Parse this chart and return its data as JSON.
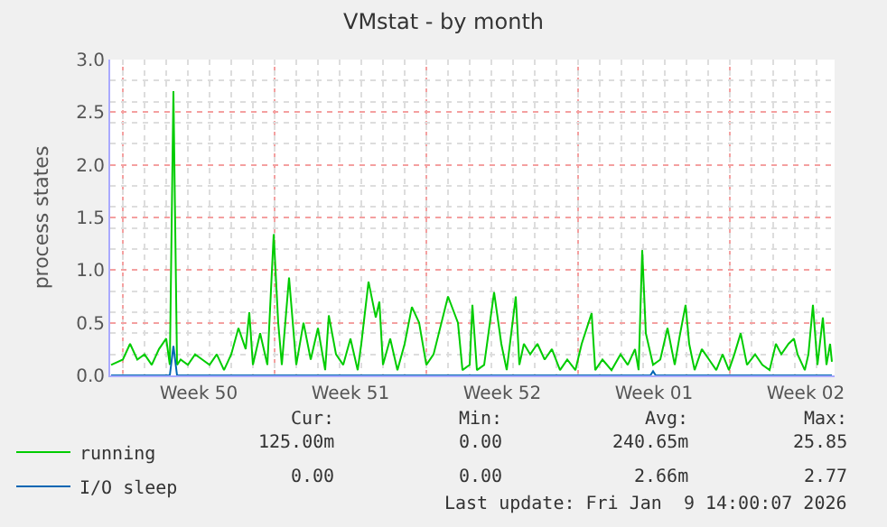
{
  "chart_data": {
    "type": "line",
    "title": "VMstat - by month",
    "ylabel": "process states",
    "xlim": [
      "2025-12-07T10:00",
      "2026-01-09T20:00"
    ],
    "xticks": [
      {
        "value": "2025-12-08",
        "label": null
      },
      {
        "value": "2025-12-11T12:00",
        "label": "Week 50"
      },
      {
        "value": "2025-12-15",
        "label": null
      },
      {
        "value": "2025-12-18T12:00",
        "label": "Week 51"
      },
      {
        "value": "2025-12-22",
        "label": null
      },
      {
        "value": "2025-12-25T12:00",
        "label": "Week 52"
      },
      {
        "value": "2025-12-29",
        "label": null
      },
      {
        "value": "2026-01-01T12:00",
        "label": "Week 01"
      },
      {
        "value": "2026-01-05",
        "label": null
      },
      {
        "value": "2026-01-08T12:00",
        "label": "Week 02"
      }
    ],
    "ylim": [
      0,
      3
    ],
    "yticks": [
      {
        "value": 0,
        "label": "0.0"
      },
      {
        "value": 0.5,
        "label": "0.5"
      },
      {
        "value": 1,
        "label": "1.0"
      },
      {
        "value": 1.5,
        "label": "1.5"
      },
      {
        "value": 2,
        "label": "2.0"
      },
      {
        "value": 2.5,
        "label": "2.5"
      },
      {
        "value": 3,
        "label": "3.0"
      }
    ],
    "grid": true,
    "legend": "bottom left",
    "series": [
      {
        "name": "running",
        "color": "#00cc00",
        "x": [
          "2025-12-07T11:00",
          "2025-12-08T00:00",
          "2025-12-08T08:00",
          "2025-12-08T16:00",
          "2025-12-09T00:00",
          "2025-12-09T08:00",
          "2025-12-09T16:00",
          "2025-12-10T00:00",
          "2025-12-10T04:00",
          "2025-12-10T08:00",
          "2025-12-10T12:00",
          "2025-12-10T16:00",
          "2025-12-11T00:00",
          "2025-12-11T08:00",
          "2025-12-11T16:00",
          "2025-12-12T00:00",
          "2025-12-12T08:00",
          "2025-12-12T16:00",
          "2025-12-13T00:00",
          "2025-12-13T08:00",
          "2025-12-13T16:00",
          "2025-12-13T20:00",
          "2025-12-14T00:00",
          "2025-12-14T08:00",
          "2025-12-14T16:00",
          "2025-12-14T23:00",
          "2025-12-15T04:00",
          "2025-12-15T08:00",
          "2025-12-15T16:00",
          "2025-12-16T00:00",
          "2025-12-16T08:00",
          "2025-12-16T16:00",
          "2025-12-17T00:00",
          "2025-12-17T08:00",
          "2025-12-17T12:00",
          "2025-12-17T20:00",
          "2025-12-18T04:00",
          "2025-12-18T12:00",
          "2025-12-18T20:00",
          "2025-12-19T00:00",
          "2025-12-19T08:00",
          "2025-12-19T16:00",
          "2025-12-19T20:00",
          "2025-12-20T00:00",
          "2025-12-20T08:00",
          "2025-12-20T16:00",
          "2025-12-21T00:00",
          "2025-12-21T08:00",
          "2025-12-21T16:00",
          "2025-12-22T00:00",
          "2025-12-22T08:00",
          "2025-12-23T00:00",
          "2025-12-23T11:00",
          "2025-12-23T16:00",
          "2025-12-24T00:00",
          "2025-12-24T03:00",
          "2025-12-24T08:00",
          "2025-12-24T16:00",
          "2025-12-25T03:00",
          "2025-12-25T11:00",
          "2025-12-25T17:00",
          "2025-12-26T03:00",
          "2025-12-26T07:00",
          "2025-12-26T12:00",
          "2025-12-26T19:00",
          "2025-12-27T03:00",
          "2025-12-27T11:00",
          "2025-12-27T19:00",
          "2025-12-28T04:00",
          "2025-12-28T12:00",
          "2025-12-28T21:00",
          "2025-12-29T04:00",
          "2025-12-29T15:00",
          "2025-12-29T19:00",
          "2025-12-30T03:00",
          "2025-12-30T13:00",
          "2025-12-30T23:00",
          "2025-12-31T07:00",
          "2025-12-31T15:00",
          "2025-12-31T19:00",
          "2025-12-31T23:00",
          "2026-01-01T03:00",
          "2026-01-01T11:00",
          "2026-01-01T19:00",
          "2026-01-02T03:00",
          "2026-01-02T11:00",
          "2026-01-02T16:00",
          "2026-01-02T23:00",
          "2026-01-03T03:00",
          "2026-01-03T09:00",
          "2026-01-03T17:00",
          "2026-01-04T01:00",
          "2026-01-04T09:00",
          "2026-01-04T16:00",
          "2026-01-04T23:00",
          "2026-01-05T05:00",
          "2026-01-05T12:00",
          "2026-01-05T19:00",
          "2026-01-06T04:00",
          "2026-01-06T12:00",
          "2026-01-06T20:00",
          "2026-01-07T03:00",
          "2026-01-07T09:00",
          "2026-01-07T17:00",
          "2026-01-07T23:00",
          "2026-01-08T03:00",
          "2026-01-08T11:00",
          "2026-01-08T15:00",
          "2026-01-08T20:00",
          "2026-01-09T01:00",
          "2026-01-09T07:00",
          "2026-01-09T11:00",
          "2026-01-09T15:00",
          "2026-01-09T17:00"
        ],
        "values": [
          0.1,
          0.15,
          0.3,
          0.15,
          0.2,
          0.1,
          0.25,
          0.35,
          0.1,
          2.7,
          0.1,
          0.15,
          0.1,
          0.2,
          0.15,
          0.1,
          0.2,
          0.05,
          0.2,
          0.45,
          0.25,
          0.6,
          0.1,
          0.4,
          0.1,
          1.34,
          0.5,
          0.1,
          0.93,
          0.1,
          0.5,
          0.15,
          0.45,
          0.05,
          0.57,
          0.2,
          0.1,
          0.35,
          0.05,
          0.3,
          0.89,
          0.55,
          0.7,
          0.1,
          0.35,
          0.05,
          0.3,
          0.65,
          0.5,
          0.1,
          0.2,
          0.75,
          0.5,
          0.05,
          0.1,
          0.67,
          0.05,
          0.1,
          0.79,
          0.3,
          0.05,
          0.75,
          0.1,
          0.3,
          0.2,
          0.3,
          0.15,
          0.25,
          0.05,
          0.15,
          0.05,
          0.3,
          0.59,
          0.05,
          0.15,
          0.05,
          0.2,
          0.1,
          0.25,
          0.05,
          1.19,
          0.4,
          0.1,
          0.15,
          0.45,
          0.1,
          0.35,
          0.67,
          0.3,
          0.05,
          0.25,
          0.15,
          0.05,
          0.2,
          0.05,
          0.2,
          0.4,
          0.1,
          0.2,
          0.1,
          0.05,
          0.3,
          0.2,
          0.3,
          0.35,
          0.2,
          0.05,
          0.2,
          0.67,
          0.1,
          0.55,
          0.1,
          0.3,
          0.13
        ]
      },
      {
        "name": "I/O sleep",
        "color": "#0066b3",
        "x": [
          "2025-12-07T11:00",
          "2025-12-10T04:00",
          "2025-12-10T08:00",
          "2025-12-10T12:00",
          "2026-01-01T08:00",
          "2026-01-01T11:00",
          "2026-01-01T14:00",
          "2026-01-09T17:00"
        ],
        "values": [
          0,
          0,
          0.28,
          0,
          0,
          0.04,
          0,
          0
        ]
      }
    ],
    "annotations": [
      "Cur:",
      "Min:",
      "Avg:",
      "Max:",
      "125.00m",
      "0.00",
      "240.65m",
      "25.85",
      "0.00",
      "0.00",
      "2.66m",
      "2.77",
      "Last update: Fri Jan  9 14:00:07 2026"
    ]
  }
}
